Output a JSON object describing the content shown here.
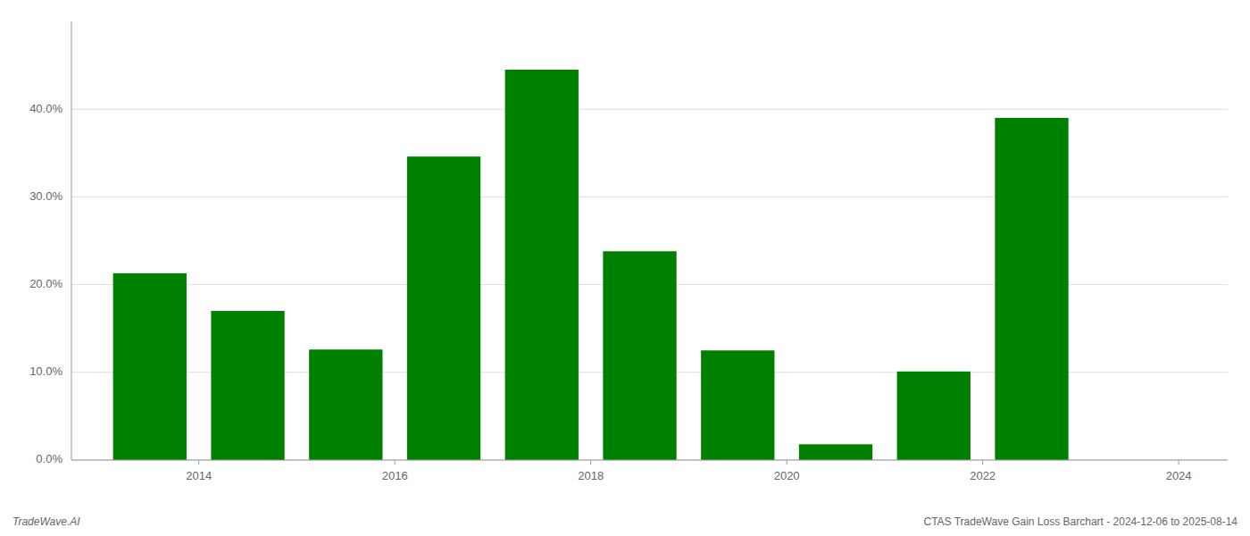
{
  "chart_data": {
    "type": "bar",
    "x": [
      2013,
      2014,
      2015,
      2016,
      2017,
      2018,
      2019,
      2020,
      2021,
      2022
    ],
    "values": [
      0.213,
      0.17,
      0.126,
      0.346,
      0.445,
      0.238,
      0.125,
      0.018,
      0.101,
      0.39
    ],
    "color": "#008000",
    "xlim": [
      2012.2,
      2024.0
    ],
    "xticks": [
      {
        "value": 2013.5,
        "label": "2014"
      },
      {
        "value": 2015.5,
        "label": "2016"
      },
      {
        "value": 2017.5,
        "label": "2018"
      },
      {
        "value": 2019.5,
        "label": "2020"
      },
      {
        "value": 2021.5,
        "label": "2022"
      },
      {
        "value": 2023.5,
        "label": "2024"
      }
    ],
    "ylim": [
      0,
      0.5
    ],
    "yticks": [
      {
        "value": 0.0,
        "label": "0.0%"
      },
      {
        "value": 0.1,
        "label": "10.0%"
      },
      {
        "value": 0.2,
        "label": "20.0%"
      },
      {
        "value": 0.3,
        "label": "30.0%"
      },
      {
        "value": 0.4,
        "label": "40.0%"
      }
    ],
    "grid": true,
    "annotations": [
      "TradeWave.AI",
      "CTAS TradeWave Gain Loss Barchart - 2024-12-06 to 2025-08-14"
    ]
  }
}
